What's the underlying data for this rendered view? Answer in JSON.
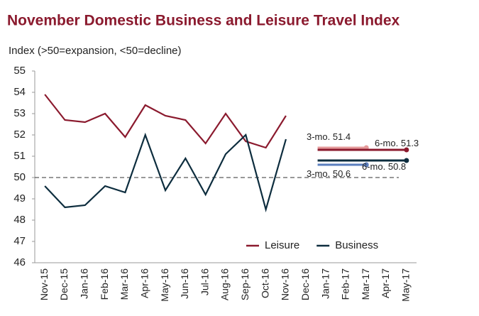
{
  "chart_data": {
    "type": "line",
    "title": "November Domestic Business and Leisure Travel Index",
    "y_label": "Index (>50=expansion, <50=decline)",
    "categories": [
      "Nov-15",
      "Dec-15",
      "Jan-16",
      "Feb-16",
      "Mar-16",
      "Apr-16",
      "May-16",
      "Jun-16",
      "Jul-16",
      "Aug-16",
      "Sep-16",
      "Oct-16",
      "Nov-16",
      "Dec-16",
      "Jan-17",
      "Feb-17",
      "Mar-17",
      "Apr-17",
      "May-17"
    ],
    "series": [
      {
        "name": "Leisure",
        "color": "#8b1a2e",
        "values": [
          53.9,
          52.7,
          52.6,
          53.0,
          51.9,
          53.4,
          52.9,
          52.7,
          51.6,
          53.0,
          51.7,
          51.4,
          52.9,
          null,
          null,
          null,
          null,
          null,
          null
        ]
      },
      {
        "name": "Business",
        "color": "#0d2d3e",
        "values": [
          49.6,
          48.6,
          48.7,
          49.6,
          49.3,
          52.0,
          49.4,
          50.9,
          49.2,
          51.1,
          52.0,
          48.5,
          51.8,
          null,
          null,
          null,
          null,
          null,
          null
        ]
      }
    ],
    "forecasts": [
      {
        "label": "3-mo.",
        "value": 51.4,
        "x": [
          "Jan-17",
          "Mar-17"
        ],
        "color": "#e59a9a"
      },
      {
        "label": "6-mo.",
        "value": 51.3,
        "x": [
          "Jan-17",
          "May-17"
        ],
        "color": "#8b1a2e"
      },
      {
        "label": "3-mo.",
        "value": 50.6,
        "x": [
          "Jan-17",
          "Mar-17"
        ],
        "color": "#5b7fbf"
      },
      {
        "label": "6-mo.",
        "value": 50.8,
        "x": [
          "Jan-17",
          "May-17"
        ],
        "color": "#0d2d3e"
      }
    ],
    "reference_line": 50,
    "ylim": [
      46,
      55
    ],
    "yticks": [
      46,
      47,
      48,
      49,
      50,
      51,
      52,
      53,
      54,
      55
    ],
    "legend": "lower right"
  }
}
